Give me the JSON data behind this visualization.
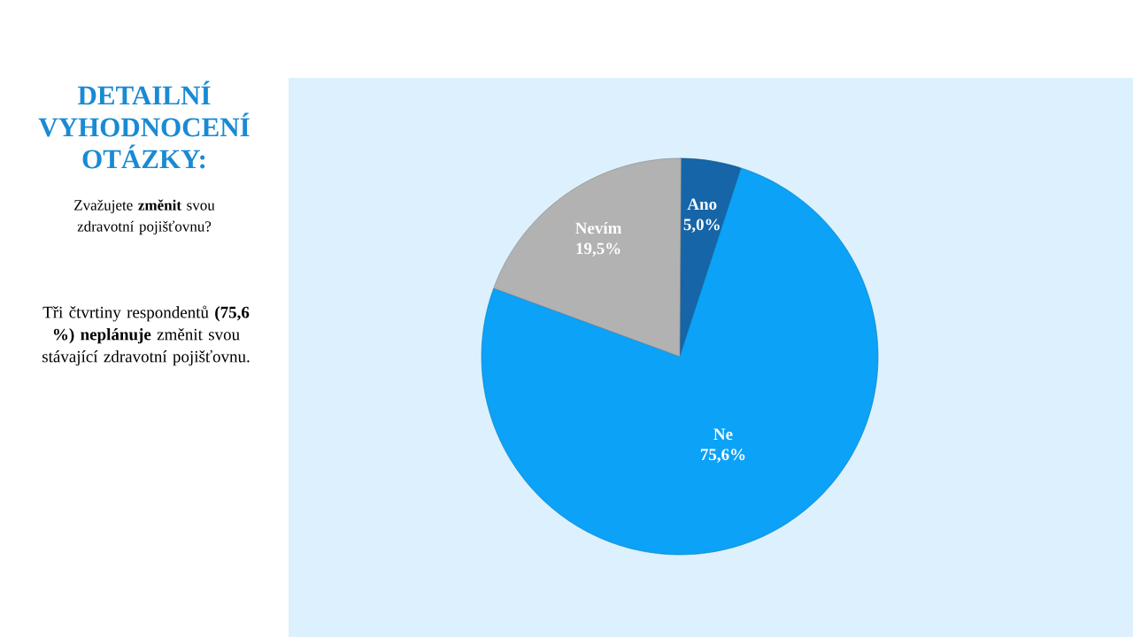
{
  "chart_data": {
    "type": "pie",
    "title": "DETAILNÍ VYHODNOCENÍ OTÁZKY:",
    "subtitle": "Zvažujete **změnit** svou zdravotní pojišťovnu?",
    "annotations": [
      "Tři čtvrtiny respondentů **(75,6 %) neplánuje** změnit svou stávající zdravotní pojišťovnu."
    ],
    "categories": [
      "Ano",
      "Ne",
      "Nevím"
    ],
    "values": [
      5.0,
      75.6,
      19.5
    ],
    "colors": [
      "#1565a8",
      "#0ba2f7",
      "#b2b2b2"
    ],
    "value_labels": [
      "5,0%",
      "75,6%",
      "19,5%"
    ]
  }
}
